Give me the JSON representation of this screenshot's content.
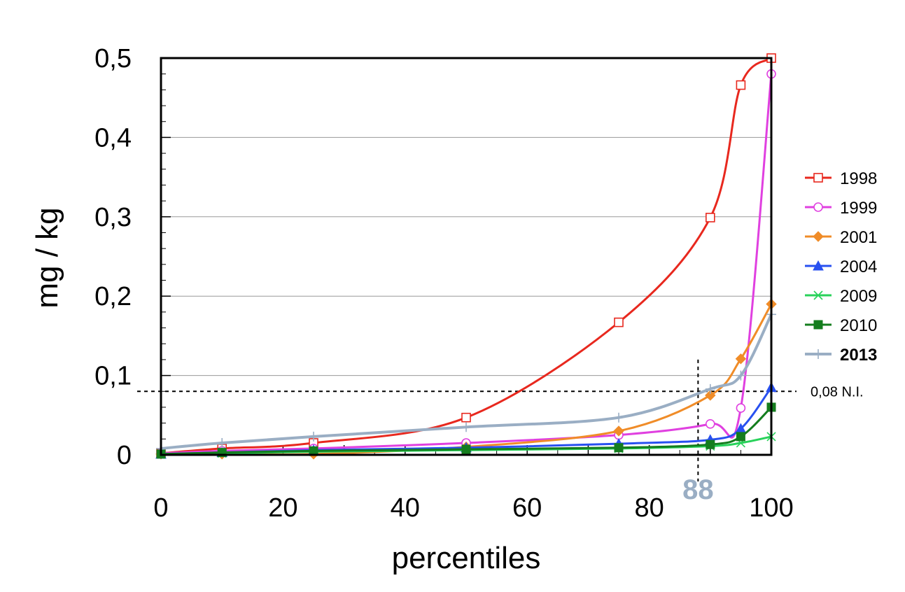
{
  "chart_data": {
    "type": "line",
    "xlabel": "percentiles",
    "ylabel": "mg / kg",
    "xlim": [
      0,
      100
    ],
    "ylim": [
      0,
      0.5
    ],
    "x_ticks": [
      0,
      20,
      40,
      60,
      80,
      100
    ],
    "y_ticks": [
      0,
      0.1,
      0.2,
      0.3,
      0.4,
      0.5
    ],
    "x_tick_labels": [
      "0",
      "20",
      "40",
      "60",
      "80",
      "100"
    ],
    "y_tick_labels": [
      "0",
      "0,1",
      "0,2",
      "0,3",
      "0,4",
      "0,5"
    ],
    "grid": "horizontal",
    "legend_position": "right",
    "series": [
      {
        "name": "1998",
        "color": "#e8281e",
        "marker": "square-open",
        "bold": false,
        "x": [
          0,
          10,
          25,
          50,
          75,
          90,
          95,
          100
        ],
        "y": [
          0.002,
          0.008,
          0.015,
          0.047,
          0.167,
          0.299,
          0.466,
          0.5
        ]
      },
      {
        "name": "1999",
        "color": "#e040e0",
        "marker": "circle-open",
        "bold": false,
        "x": [
          0,
          10,
          25,
          50,
          75,
          90,
          95,
          100
        ],
        "y": [
          0.002,
          0.005,
          0.008,
          0.015,
          0.025,
          0.039,
          0.059,
          0.48
        ]
      },
      {
        "name": "2001",
        "color": "#f08c28",
        "marker": "diamond",
        "bold": false,
        "x": [
          0,
          10,
          25,
          50,
          75,
          90,
          95,
          100
        ],
        "y": [
          0.001,
          0.001,
          0.001,
          0.01,
          0.03,
          0.075,
          0.121,
          0.19
        ]
      },
      {
        "name": "2004",
        "color": "#2850f0",
        "marker": "triangle",
        "bold": false,
        "x": [
          0,
          10,
          25,
          50,
          75,
          90,
          95,
          100
        ],
        "y": [
          0.001,
          0.003,
          0.006,
          0.009,
          0.014,
          0.019,
          0.033,
          0.085
        ]
      },
      {
        "name": "2009",
        "color": "#28d25a",
        "marker": "x",
        "bold": false,
        "x": [
          0,
          10,
          25,
          50,
          75,
          90,
          95,
          100
        ],
        "y": [
          0.001,
          0.002,
          0.004,
          0.006,
          0.008,
          0.011,
          0.015,
          0.023
        ]
      },
      {
        "name": "2010",
        "color": "#147d1e",
        "marker": "square",
        "bold": false,
        "x": [
          0,
          10,
          25,
          50,
          75,
          90,
          95,
          100
        ],
        "y": [
          0.001,
          0.003,
          0.005,
          0.007,
          0.009,
          0.013,
          0.023,
          0.06
        ]
      },
      {
        "name": "2013",
        "color": "#9aaec4",
        "marker": "plus",
        "bold": true,
        "x": [
          0,
          10,
          25,
          50,
          75,
          90,
          95,
          100
        ],
        "y": [
          0.008,
          0.015,
          0.023,
          0.035,
          0.047,
          0.083,
          0.1,
          0.177
        ]
      }
    ],
    "annotations": {
      "threshold_y": 0.08,
      "threshold_label": "0,08 N.I.",
      "marker_x": 88,
      "marker_label": "88"
    }
  }
}
